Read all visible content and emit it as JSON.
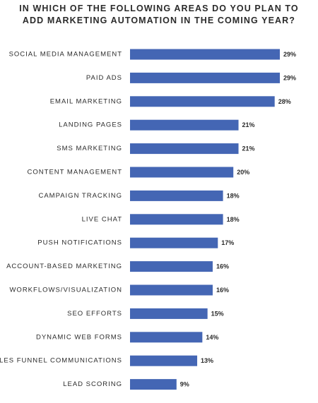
{
  "title_lines": [
    "IN WHICH OF THE FOLLOWING AREAS DO YOU PLAN TO",
    "ADD MARKETING AUTOMATION IN THE COMING YEAR?"
  ],
  "colors": {
    "bar": "#4466b4",
    "text": "#2b2b2b",
    "background": "#ffffff"
  },
  "chart_data": {
    "type": "bar",
    "orientation": "horizontal",
    "title": "IN WHICH OF THE FOLLOWING AREAS DO YOU PLAN TO ADD MARKETING AUTOMATION IN THE COMING YEAR?",
    "categories": [
      "SOCIAL MEDIA MANAGEMENT",
      "PAID ADS",
      "EMAIL MARKETING",
      "LANDING PAGES",
      "SMS MARKETING",
      "CONTENT MANAGEMENT",
      "CAMPAIGN TRACKING",
      "LIVE CHAT",
      "PUSH NOTIFICATIONS",
      "ACCOUNT-BASED MARKETING",
      "WORKFLOWS/VISUALIZATION",
      "SEO EFFORTS",
      "DYNAMIC WEB FORMS",
      "SALES FUNNEL COMMUNICATIONS",
      "LEAD SCORING"
    ],
    "values": [
      29,
      29,
      28,
      21,
      21,
      20,
      18,
      18,
      17,
      16,
      16,
      15,
      14,
      13,
      9
    ],
    "value_labels": [
      "29%",
      "29%",
      "28%",
      "21%",
      "21%",
      "20%",
      "18%",
      "18%",
      "17%",
      "16%",
      "16%",
      "15%",
      "14%",
      "13%",
      "9%"
    ],
    "unit": "%",
    "xlim": [
      0,
      29
    ],
    "grid": false,
    "legend": "none"
  }
}
